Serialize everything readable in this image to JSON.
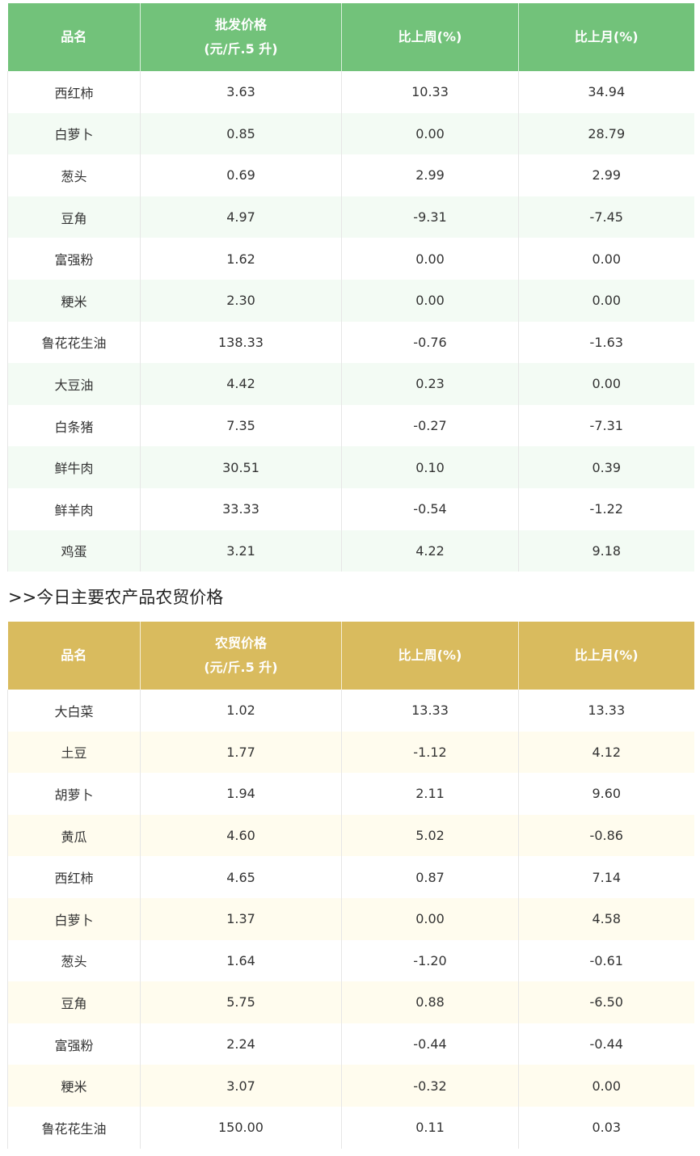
{
  "wholesale_table": {
    "headers": {
      "name": "品名",
      "price_line1": "批发价格",
      "price_line2": "(元/斤.5 升)",
      "week": "比上周(%)",
      "month": "比上月(%)"
    },
    "rows": [
      {
        "name": "西红柿",
        "price": "3.63",
        "week": "10.33",
        "month": "34.94"
      },
      {
        "name": "白萝卜",
        "price": "0.85",
        "week": "0.00",
        "month": "28.79"
      },
      {
        "name": "葱头",
        "price": "0.69",
        "week": "2.99",
        "month": "2.99"
      },
      {
        "name": "豆角",
        "price": "4.97",
        "week": "-9.31",
        "month": "-7.45"
      },
      {
        "name": "富强粉",
        "price": "1.62",
        "week": "0.00",
        "month": "0.00"
      },
      {
        "name": "粳米",
        "price": "2.30",
        "week": "0.00",
        "month": "0.00"
      },
      {
        "name": "鲁花花生油",
        "price": "138.33",
        "week": "-0.76",
        "month": "-1.63"
      },
      {
        "name": "大豆油",
        "price": "4.42",
        "week": "0.23",
        "month": "0.00"
      },
      {
        "name": "白条猪",
        "price": "7.35",
        "week": "-0.27",
        "month": "-7.31"
      },
      {
        "name": "鲜牛肉",
        "price": "30.51",
        "week": "0.10",
        "month": "0.39"
      },
      {
        "name": "鲜羊肉",
        "price": "33.33",
        "week": "-0.54",
        "month": "-1.22"
      },
      {
        "name": "鸡蛋",
        "price": "3.21",
        "week": "4.22",
        "month": "9.18"
      }
    ]
  },
  "section_heading": ">>今日主要农产品农贸价格",
  "market_table": {
    "headers": {
      "name": "品名",
      "price_line1": "农贸价格",
      "price_line2": "(元/斤.5 升)",
      "week": "比上周(%)",
      "month": "比上月(%)"
    },
    "rows": [
      {
        "name": "大白菜",
        "price": "1.02",
        "week": "13.33",
        "month": "13.33"
      },
      {
        "name": "土豆",
        "price": "1.77",
        "week": "-1.12",
        "month": "4.12"
      },
      {
        "name": "胡萝卜",
        "price": "1.94",
        "week": "2.11",
        "month": "9.60"
      },
      {
        "name": "黄瓜",
        "price": "4.60",
        "week": "5.02",
        "month": "-0.86"
      },
      {
        "name": "西红柿",
        "price": "4.65",
        "week": "0.87",
        "month": "7.14"
      },
      {
        "name": "白萝卜",
        "price": "1.37",
        "week": "0.00",
        "month": "4.58"
      },
      {
        "name": "葱头",
        "price": "1.64",
        "week": "-1.20",
        "month": "-0.61"
      },
      {
        "name": "豆角",
        "price": "5.75",
        "week": "0.88",
        "month": "-6.50"
      },
      {
        "name": "富强粉",
        "price": "2.24",
        "week": "-0.44",
        "month": "-0.44"
      },
      {
        "name": "粳米",
        "price": "3.07",
        "week": "-0.32",
        "month": "0.00"
      },
      {
        "name": "鲁花花生油",
        "price": "150.00",
        "week": "0.11",
        "month": "0.03"
      }
    ]
  }
}
